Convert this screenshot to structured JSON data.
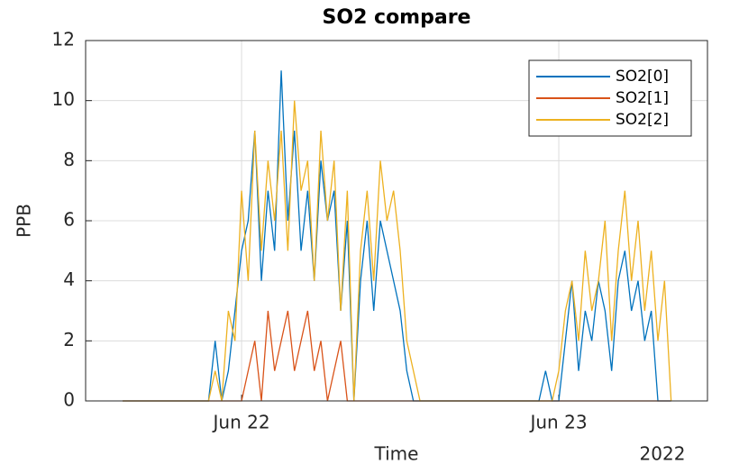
{
  "chart_data": {
    "type": "line",
    "title": "SO2 compare",
    "ylabel": "PPB",
    "xlabel": "Time",
    "x_secondary_label": "2022",
    "x": [
      -9,
      -8.5,
      -8,
      -7.5,
      -7,
      -6.5,
      -6,
      -5.5,
      -5,
      -4.5,
      -4,
      -3.5,
      -3,
      -2.5,
      -2,
      -1.5,
      -1,
      -0.5,
      0,
      0.5,
      1,
      1.5,
      2,
      2.5,
      3,
      3.5,
      4,
      4.5,
      5,
      5.5,
      6,
      6.5,
      7,
      7.5,
      8,
      8.5,
      9,
      9.5,
      10,
      10.5,
      11,
      11.5,
      12,
      12.5,
      13,
      13.5,
      14,
      14.5,
      15,
      15.5,
      16,
      16.5,
      17,
      17.5,
      18,
      18.5,
      19,
      19.5,
      20,
      20.5,
      21,
      21.5,
      22,
      22.5,
      23,
      23.5,
      24,
      24.5,
      25,
      25.5,
      26,
      26.5,
      27,
      27.5,
      28,
      28.5,
      29,
      29.5,
      30,
      30.5,
      31,
      31.5,
      32,
      32.5
    ],
    "series": [
      {
        "name": "SO2[0]",
        "color": "#0072bd",
        "values": [
          0,
          0,
          0,
          0,
          0,
          0,
          0,
          0,
          0,
          0,
          0,
          0,
          0,
          0,
          2,
          0,
          1,
          3,
          5,
          6,
          9,
          4,
          7,
          5,
          11,
          6,
          9,
          5,
          7,
          4,
          8,
          6,
          7,
          3,
          6,
          0,
          4,
          6,
          3,
          6,
          5,
          4,
          3,
          1,
          0,
          0,
          0,
          0,
          0,
          0,
          0,
          0,
          0,
          0,
          0,
          0,
          0,
          0,
          0,
          0,
          0,
          0,
          0,
          0,
          1,
          0,
          0,
          2,
          4,
          1,
          3,
          2,
          4,
          3,
          1,
          4,
          5,
          3,
          4,
          2,
          3,
          0,
          0,
          0
        ]
      },
      {
        "name": "SO2[1]",
        "color": "#d95319",
        "values": [
          0,
          0,
          0,
          0,
          0,
          0,
          0,
          0,
          0,
          0,
          0,
          0,
          0,
          0,
          0,
          0,
          0,
          0,
          0,
          1,
          2,
          0,
          3,
          1,
          2,
          3,
          1,
          2,
          3,
          1,
          2,
          0,
          1,
          2,
          0,
          0,
          0,
          0,
          0,
          0,
          0,
          0,
          0,
          0,
          0,
          0,
          0,
          0,
          0,
          0,
          0,
          0,
          0,
          0,
          0,
          0,
          0,
          0,
          0,
          0,
          0,
          0,
          0,
          0,
          0,
          0,
          0,
          0,
          0,
          0,
          0,
          0,
          0,
          0,
          0,
          0,
          0,
          0,
          0,
          0,
          0,
          0,
          0,
          0
        ]
      },
      {
        "name": "SO2[2]",
        "color": "#edb120",
        "values": [
          0,
          0,
          0,
          0,
          0,
          0,
          0,
          0,
          0,
          0,
          0,
          0,
          0,
          0,
          1,
          0,
          3,
          2,
          7,
          4,
          9,
          5,
          8,
          6,
          9,
          5,
          10,
          7,
          8,
          4,
          9,
          6,
          8,
          3,
          7,
          0,
          5,
          7,
          4,
          8,
          6,
          7,
          5,
          2,
          1,
          0,
          0,
          0,
          0,
          0,
          0,
          0,
          0,
          0,
          0,
          0,
          0,
          0,
          0,
          0,
          0,
          0,
          0,
          0,
          0,
          0,
          1,
          3,
          4,
          2,
          5,
          3,
          4,
          6,
          2,
          5,
          7,
          4,
          6,
          3,
          5,
          2,
          4,
          0
        ]
      }
    ],
    "xlim": [
      -11.8,
      35.25
    ],
    "xticks": [
      {
        "value": 0,
        "label": "Jun 22"
      },
      {
        "value": 24,
        "label": "Jun 23"
      }
    ],
    "ylim": [
      0,
      12
    ],
    "yticks": [
      0,
      2,
      4,
      6,
      8,
      10,
      12
    ],
    "grid": true,
    "legend": "upper right"
  }
}
